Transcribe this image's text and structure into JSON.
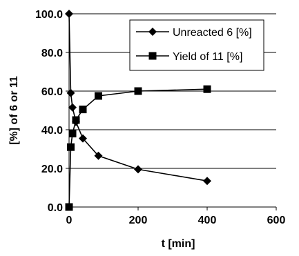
{
  "chart_data": {
    "type": "scatter",
    "xlabel": "t [min]",
    "ylabel": "[%] of 6 or 11",
    "xlim": [
      0,
      600
    ],
    "ylim": [
      0,
      100
    ],
    "xticks": [
      0,
      200,
      400,
      600
    ],
    "yticks": [
      0,
      20,
      40,
      60,
      80,
      100
    ],
    "xtick_labels": [
      "0",
      "200",
      "400",
      "600"
    ],
    "ytick_labels": [
      "0.0",
      "20.0",
      "40.0",
      "60.0",
      "80.0",
      "100.0"
    ],
    "grid": "horizontal",
    "legend_position": "top-right",
    "series": [
      {
        "name": "Unreacted 6 [%]",
        "marker": "diamond",
        "color": "#000000",
        "points": [
          [
            0,
            100
          ],
          [
            5,
            59
          ],
          [
            10,
            51.5
          ],
          [
            20,
            44
          ],
          [
            40,
            35.5
          ],
          [
            85,
            26.5
          ],
          [
            200,
            19.5
          ],
          [
            400,
            13.5
          ]
        ]
      },
      {
        "name": "Yield of 11 [%]",
        "marker": "square",
        "color": "#000000",
        "points": [
          [
            0,
            0
          ],
          [
            5,
            31
          ],
          [
            10,
            38
          ],
          [
            20,
            45
          ],
          [
            40,
            50.5
          ],
          [
            85,
            57.5
          ],
          [
            200,
            60
          ],
          [
            400,
            61
          ]
        ]
      }
    ]
  }
}
